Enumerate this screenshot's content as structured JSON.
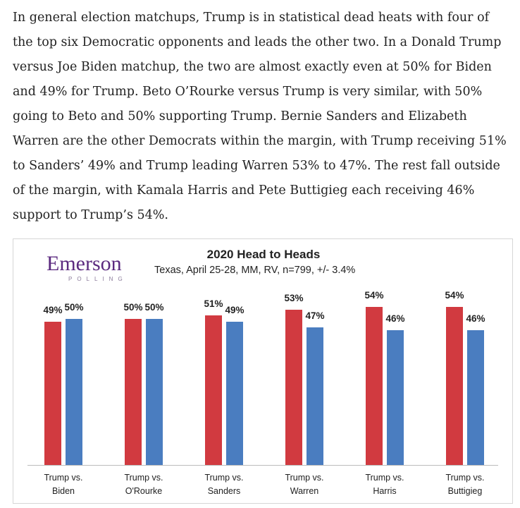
{
  "paragraph": "In general election matchups, Trump is in statistical dead heats with four of the top six Democratic opponents and leads the other two. In a Donald Trump versus Joe Biden matchup, the two are almost exactly even at 50% for Biden and 49% for Trump. Beto O’Rourke versus Trump is very similar, with 50% going to Beto and 50% supporting Trump. Bernie Sanders and Elizabeth Warren are the other Democrats within the margin, with Trump receiving 51% to Sanders’ 49% and Trump leading Warren 53% to 47%. The rest fall outside of the margin, with Kamala Harris and Pete Buttigieg each receiving 46% support to Trump’s 54%.",
  "logo": {
    "name": "Emerson",
    "tagline": "POLLING"
  },
  "chart_data": {
    "type": "bar",
    "title": "2020 Head to Heads",
    "subtitle": "Texas, April 25-28, MM, RV, n=799, +/- 3.4%",
    "categories": [
      "Trump vs. Biden",
      "Trump vs. O'Rourke",
      "Trump vs. Sanders",
      "Trump vs. Warren",
      "Trump vs. Harris",
      "Trump vs. Buttigieg"
    ],
    "series": [
      {
        "color": "#d13a40",
        "values": [
          49,
          50,
          51,
          53,
          54,
          54
        ],
        "value_labels": [
          "49%",
          "50%",
          "51%",
          "53%",
          "54%",
          "54%"
        ]
      },
      {
        "color": "#4a7dc0",
        "values": [
          50,
          50,
          49,
          47,
          46,
          46
        ],
        "value_labels": [
          "50%",
          "50%",
          "49%",
          "47%",
          "46%",
          "46%"
        ]
      }
    ]
  }
}
